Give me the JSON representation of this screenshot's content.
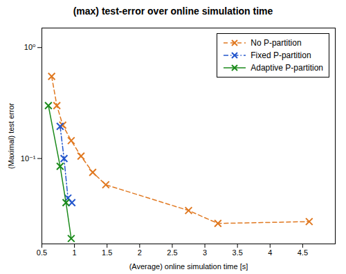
{
  "chart_data": {
    "type": "line",
    "title": "(max) test-error over online simulation time",
    "xlabel": "(Average) online simulation time [s]",
    "ylabel": "(Maximal) test error",
    "xlim": [
      0.5,
      5.0
    ],
    "ylim": [
      0.017,
      1.5
    ],
    "xticks": [
      0.5,
      1,
      1.5,
      2,
      2.5,
      3,
      3.5,
      4,
      4.5
    ],
    "yticks": [
      {
        "value": 0.1,
        "label": "10⁻¹"
      },
      {
        "value": 1,
        "label": "10⁰"
      }
    ],
    "log": "y",
    "grid": false,
    "legend": "upper right",
    "series": [
      {
        "name": "No P-partition",
        "color": "#e07820",
        "line_style": "dashed",
        "marker": "x",
        "x": [
          0.65,
          0.73,
          0.82,
          0.95,
          1.1,
          1.28,
          1.48,
          2.75,
          3.2,
          4.6
        ],
        "values": [
          0.55,
          0.3,
          0.2,
          0.145,
          0.105,
          0.075,
          0.058,
          0.034,
          0.026,
          0.027
        ]
      },
      {
        "name": "Fixed P-partition",
        "color": "#2255cc",
        "line_style": "dashdot",
        "marker": "x",
        "x": [
          0.78,
          0.84,
          0.9,
          0.96
        ],
        "values": [
          0.195,
          0.1,
          0.044,
          0.04
        ]
      },
      {
        "name": "Adaptive P-partition",
        "color": "#1a8a1a",
        "line_style": "solid",
        "marker": "x",
        "x": [
          0.6,
          0.78,
          0.87,
          0.95
        ],
        "values": [
          0.3,
          0.085,
          0.04,
          0.019
        ]
      }
    ]
  }
}
